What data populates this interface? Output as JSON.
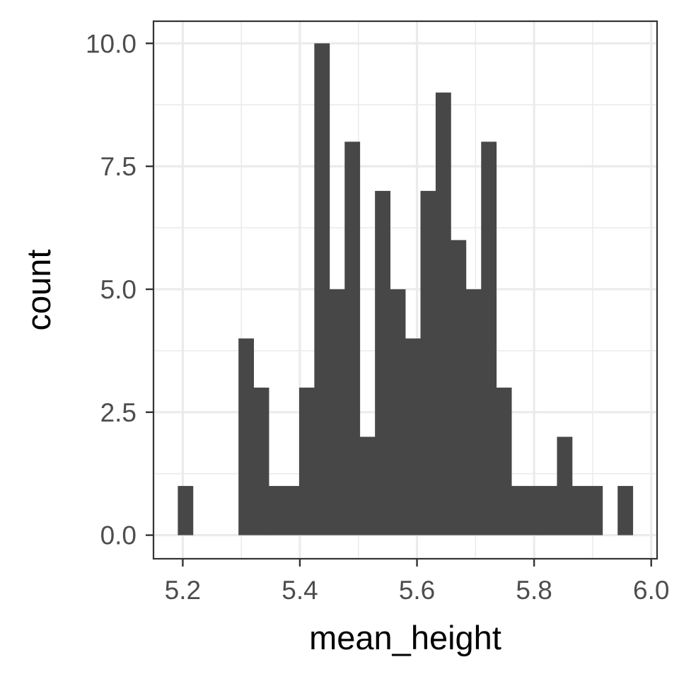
{
  "chart_data": {
    "type": "bar",
    "subtype": "histogram",
    "xlabel": "mean_height",
    "ylabel": "count",
    "xlim": [
      5.15,
      6.01
    ],
    "ylim": [
      -0.48,
      10.45
    ],
    "x_ticks": [
      5.2,
      5.4,
      5.6,
      5.8,
      6.0
    ],
    "x_tick_labels": [
      "5.2",
      "5.4",
      "5.6",
      "5.8",
      "6.0"
    ],
    "y_ticks": [
      0.0,
      2.5,
      5.0,
      7.5,
      10.0
    ],
    "y_tick_labels": [
      "0.0",
      "2.5",
      "5.0",
      "7.5",
      "10.0"
    ],
    "bin_width": 0.0259,
    "bin_centers": [
      5.2045,
      5.2304,
      5.2563,
      5.2822,
      5.3081,
      5.334,
      5.3599,
      5.3858,
      5.4117,
      5.4376,
      5.4635,
      5.4894,
      5.5153,
      5.5412,
      5.5671,
      5.593,
      5.6189,
      5.6448,
      5.6707,
      5.6966,
      5.7225,
      5.7484,
      5.7743,
      5.8002,
      5.8261,
      5.852,
      5.8779,
      5.9038,
      5.9297,
      5.9556
    ],
    "values": [
      1,
      0,
      0,
      0,
      4,
      3,
      1,
      1,
      3,
      10,
      5,
      8,
      2,
      7,
      5,
      4,
      7,
      9,
      6,
      5,
      8,
      3,
      1,
      1,
      1,
      2,
      1,
      1,
      0,
      1
    ],
    "grid": true,
    "bar_color": "#474747",
    "grid_color": "#ebebeb",
    "panel_border_color": "#333333"
  }
}
